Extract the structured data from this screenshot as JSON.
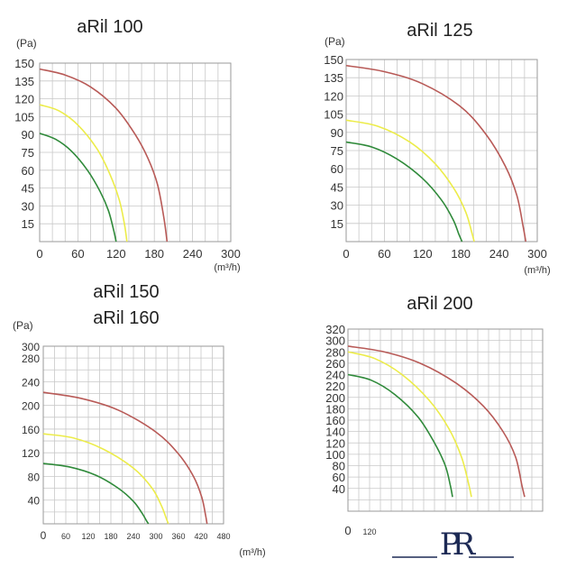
{
  "colors": {
    "red": "#b85a57",
    "yellow": "#ecec4a",
    "green": "#2f8a3a"
  },
  "logo": {
    "text": "PR"
  },
  "chart_data": [
    {
      "type": "line",
      "title": [
        "aRil 100"
      ],
      "ylabel": "(Pa)",
      "xlabel": "(m³/h)",
      "xlim": [
        0,
        300
      ],
      "ylim": [
        0,
        150
      ],
      "xticks": [
        "0",
        "60",
        "120",
        "180",
        "240",
        "300"
      ],
      "yticks": [
        "15",
        "30",
        "45",
        "60",
        "75",
        "90",
        "105",
        "120",
        "135",
        "150"
      ],
      "series": [
        {
          "color": "red",
          "x": [
            0,
            40,
            80,
            120,
            150,
            170,
            185,
            195,
            200
          ],
          "y": [
            145,
            140,
            130,
            112,
            90,
            70,
            48,
            20,
            0
          ]
        },
        {
          "color": "yellow",
          "x": [
            0,
            30,
            60,
            90,
            110,
            125,
            133,
            137
          ],
          "y": [
            115,
            110,
            98,
            78,
            57,
            35,
            15,
            0
          ]
        },
        {
          "color": "green",
          "x": [
            0,
            25,
            50,
            75,
            95,
            108,
            116,
            120
          ],
          "y": [
            91,
            86,
            76,
            60,
            42,
            26,
            10,
            0
          ]
        }
      ]
    },
    {
      "type": "line",
      "title": [
        "aRil 125"
      ],
      "ylabel": "(Pa)",
      "xlabel": "(m³/h)",
      "xlim": [
        0,
        300
      ],
      "ylim": [
        0,
        150
      ],
      "xticks": [
        "0",
        "60",
        "120",
        "180",
        "240",
        "300"
      ],
      "yticks": [
        "15",
        "30",
        "45",
        "60",
        "75",
        "90",
        "105",
        "120",
        "135",
        "150"
      ],
      "series": [
        {
          "color": "red",
          "x": [
            0,
            60,
            120,
            180,
            220,
            250,
            268,
            278,
            282
          ],
          "y": [
            145,
            140,
            130,
            111,
            88,
            62,
            38,
            12,
            0
          ]
        },
        {
          "color": "yellow",
          "x": [
            0,
            50,
            100,
            140,
            170,
            188,
            197,
            201
          ],
          "y": [
            100,
            95,
            82,
            64,
            43,
            24,
            8,
            0
          ]
        },
        {
          "color": "green",
          "x": [
            0,
            40,
            80,
            120,
            150,
            168,
            177,
            182
          ],
          "y": [
            82,
            78,
            68,
            52,
            34,
            18,
            6,
            0
          ]
        }
      ]
    },
    {
      "type": "line",
      "title": [
        "aRil 150",
        "aRil 160"
      ],
      "ylabel": "(Pa)",
      "xlabel": "(m³/h)",
      "xlim": [
        0,
        480
      ],
      "ylim": [
        0,
        300
      ],
      "xticks": [
        "0",
        "60",
        "120",
        "180",
        "240",
        "300",
        "360",
        "420",
        "480"
      ],
      "yticks": [
        "40",
        "80",
        "120",
        "160",
        "200",
        "240",
        "280",
        "300"
      ],
      "series": [
        {
          "color": "red",
          "x": [
            0,
            100,
            200,
            300,
            360,
            400,
            422,
            432,
            436
          ],
          "y": [
            222,
            212,
            192,
            155,
            118,
            80,
            45,
            15,
            0
          ]
        },
        {
          "color": "yellow",
          "x": [
            0,
            80,
            160,
            240,
            290,
            315,
            327,
            333
          ],
          "y": [
            152,
            145,
            126,
            94,
            60,
            30,
            10,
            0
          ]
        },
        {
          "color": "green",
          "x": [
            0,
            70,
            140,
            200,
            240,
            263,
            274,
            280
          ],
          "y": [
            102,
            96,
            82,
            60,
            38,
            18,
            6,
            0
          ]
        }
      ]
    },
    {
      "type": "line",
      "title": [
        "aRil 200"
      ],
      "ylabel": "",
      "xlabel": "",
      "xlim": [
        0,
        1080
      ],
      "ylim": [
        0,
        320
      ],
      "xticks": [
        "0",
        "120"
      ],
      "yticks": [
        "40",
        "60",
        "80",
        "100",
        "120",
        "140",
        "160",
        "180",
        "200",
        "220",
        "240",
        "260",
        "280",
        "300",
        "320"
      ],
      "series": [
        {
          "color": "red",
          "x": [
            0,
            200,
            400,
            600,
            750,
            860,
            930,
            965,
            980
          ],
          "y": [
            290,
            280,
            260,
            225,
            185,
            140,
            95,
            45,
            25
          ]
        },
        {
          "color": "yellow",
          "x": [
            0,
            150,
            300,
            450,
            560,
            630,
            668,
            685
          ],
          "y": [
            280,
            268,
            240,
            195,
            145,
            95,
            50,
            25
          ]
        },
        {
          "color": "green",
          "x": [
            0,
            130,
            260,
            390,
            480,
            540,
            568,
            580
          ],
          "y": [
            240,
            230,
            205,
            165,
            120,
            80,
            45,
            25
          ]
        }
      ]
    }
  ]
}
